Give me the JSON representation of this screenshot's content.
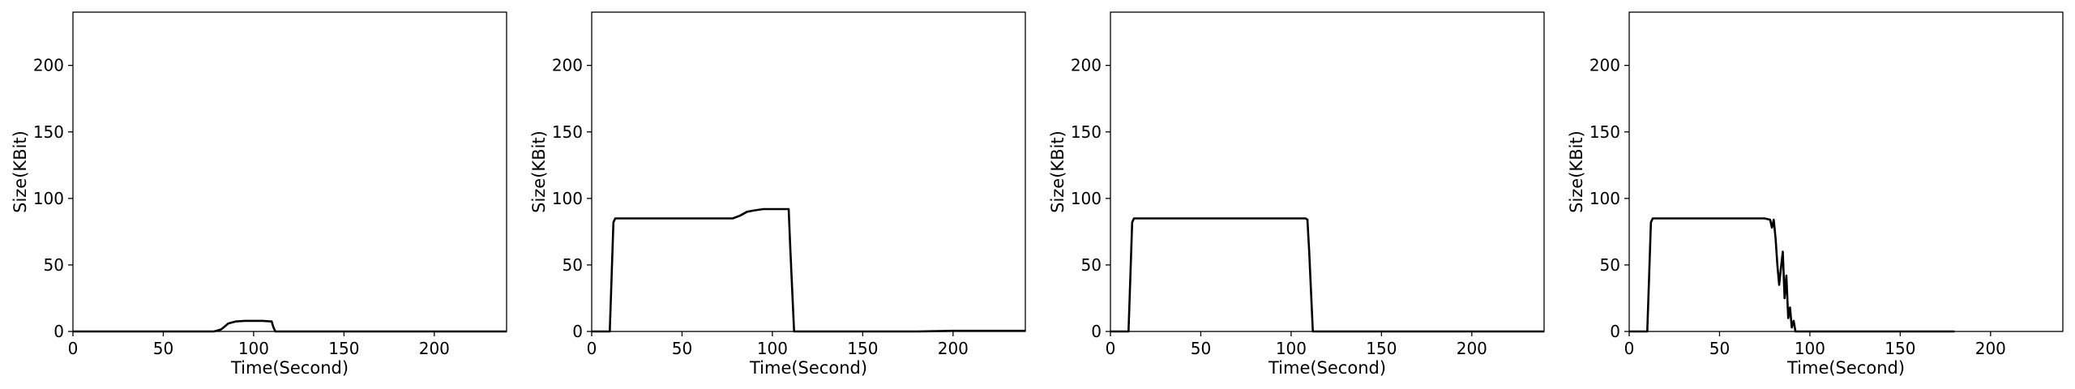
{
  "chart_data": [
    {
      "type": "line",
      "xlabel": "Time(Second)",
      "ylabel": "Size(KBit)",
      "xlim": [
        0,
        240
      ],
      "ylim": [
        0,
        240
      ],
      "xticks": [
        0,
        50,
        100,
        150,
        200
      ],
      "yticks": [
        0,
        50,
        100,
        150,
        200
      ],
      "grid": false,
      "series": [
        {
          "color": "#000000",
          "x": [
            0,
            10,
            20,
            40,
            60,
            78,
            82,
            86,
            90,
            95,
            100,
            105,
            110,
            111,
            112,
            130,
            160,
            190,
            220,
            240
          ],
          "y": [
            0,
            0,
            0,
            0,
            0,
            0,
            1.5,
            6,
            7.5,
            8,
            8,
            8,
            7.5,
            3,
            0,
            0,
            0,
            0,
            0,
            0
          ]
        }
      ]
    },
    {
      "type": "line",
      "xlabel": "Time(Second)",
      "ylabel": "Size(KBit)",
      "xlim": [
        0,
        240
      ],
      "ylim": [
        0,
        240
      ],
      "xticks": [
        0,
        50,
        100,
        150,
        200
      ],
      "yticks": [
        0,
        50,
        100,
        150,
        200
      ],
      "grid": false,
      "series": [
        {
          "color": "#000000",
          "x": [
            0,
            5,
            10,
            11,
            12,
            13,
            15,
            20,
            30,
            40,
            50,
            60,
            70,
            78,
            82,
            86,
            90,
            95,
            100,
            105,
            109,
            110,
            112,
            120,
            150,
            180,
            200,
            240
          ],
          "y": [
            0,
            0,
            0,
            40,
            82,
            85,
            85,
            85,
            85,
            85,
            85,
            85,
            85,
            85,
            87,
            90,
            91,
            92,
            92,
            92,
            92,
            60,
            0,
            0,
            0,
            0,
            0.5,
            0.5
          ]
        }
      ]
    },
    {
      "type": "line",
      "xlabel": "Time(Second)",
      "ylabel": "Size(KBit)",
      "xlim": [
        0,
        240
      ],
      "ylim": [
        0,
        240
      ],
      "xticks": [
        0,
        50,
        100,
        150,
        200
      ],
      "yticks": [
        0,
        50,
        100,
        150,
        200
      ],
      "grid": false,
      "series": [
        {
          "color": "#000000",
          "x": [
            0,
            5,
            10,
            11,
            12,
            13,
            15,
            20,
            40,
            60,
            80,
            100,
            108,
            109,
            110,
            112,
            130,
            160,
            190,
            220,
            240
          ],
          "y": [
            0,
            0,
            0,
            40,
            82,
            85,
            85,
            85,
            85,
            85,
            85,
            85,
            85,
            84,
            60,
            0,
            0,
            0,
            0,
            0,
            0
          ]
        }
      ]
    },
    {
      "type": "line",
      "xlabel": "Time(Second)",
      "ylabel": "Size(KBit)",
      "xlim": [
        0,
        240
      ],
      "ylim": [
        0,
        240
      ],
      "xticks": [
        0,
        50,
        100,
        150,
        200
      ],
      "yticks": [
        0,
        50,
        100,
        150,
        200
      ],
      "grid": false,
      "series": [
        {
          "color": "#000000",
          "x": [
            0,
            5,
            10,
            11,
            12,
            13,
            15,
            20,
            40,
            60,
            75,
            78,
            79,
            80,
            81,
            82,
            83,
            84,
            85,
            86,
            87,
            88,
            89,
            90,
            91,
            92,
            94,
            96,
            100,
            120,
            150,
            180
          ],
          "y": [
            0,
            0,
            0,
            40,
            82,
            85,
            85,
            85,
            85,
            85,
            85,
            84,
            78,
            84,
            70,
            50,
            35,
            48,
            60,
            25,
            42,
            10,
            18,
            3,
            8,
            0,
            0,
            0,
            0,
            0,
            0,
            0
          ]
        }
      ]
    }
  ]
}
